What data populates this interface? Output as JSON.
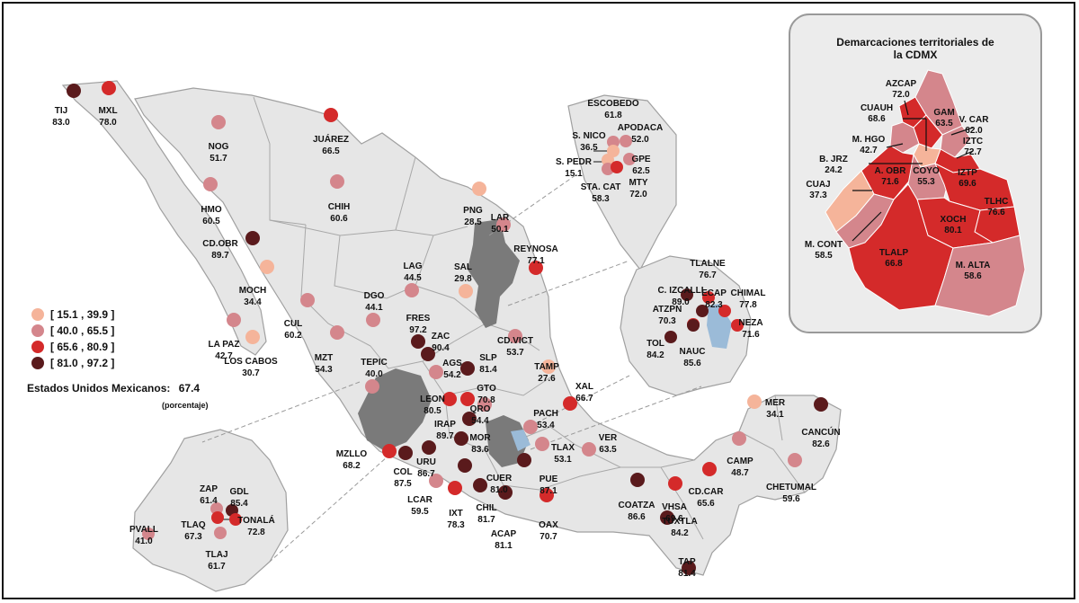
{
  "colors": {
    "class1": "#f5b49a",
    "class2": "#d4868c",
    "class3": "#d42a2a",
    "class4": "#5a1a1c",
    "land": "#e6e6e6",
    "border": "#a0a0a0",
    "highlight": "#7a7a7a",
    "water_blue": "#9bbbd8"
  },
  "legend": {
    "items": [
      {
        "label": "[ 15.1 , 39.9 ]",
        "cls": "class1"
      },
      {
        "label": "[ 40.0 , 65.5 ]",
        "cls": "class2"
      },
      {
        "label": "[ 65.6 , 80.9 ]",
        "cls": "class3"
      },
      {
        "label": "[ 81.0 , 97.2 ]",
        "cls": "class4"
      }
    ],
    "national_label": "Estados Unidos Mexicanos:",
    "national_value": "67.4",
    "unit_note": "(porcentaje)"
  },
  "inset_cdmx": {
    "title_line1": "Demarcaciones territoriales de",
    "title_line2": "la CDMX",
    "districts": [
      {
        "name": "AZCAP",
        "value": "72.0",
        "cls": "class3"
      },
      {
        "name": "GAM",
        "value": "63.5",
        "cls": "class2"
      },
      {
        "name": "CUAUH",
        "value": "68.6",
        "cls": "class3"
      },
      {
        "name": "V. CAR",
        "value": "62.0",
        "cls": "class2"
      },
      {
        "name": "M. HGO",
        "value": "42.7",
        "cls": "class2"
      },
      {
        "name": "IZTC",
        "value": "72.7",
        "cls": "class3"
      },
      {
        "name": "B. JRZ",
        "value": "24.2",
        "cls": "class1"
      },
      {
        "name": "A. OBR",
        "value": "71.6",
        "cls": "class3"
      },
      {
        "name": "COYO",
        "value": "55.3",
        "cls": "class2"
      },
      {
        "name": "IZTP",
        "value": "69.6",
        "cls": "class3"
      },
      {
        "name": "CUAJ",
        "value": "37.3",
        "cls": "class1"
      },
      {
        "name": "TLHC",
        "value": "76.6",
        "cls": "class3"
      },
      {
        "name": "XOCH",
        "value": "80.1",
        "cls": "class3"
      },
      {
        "name": "M. CONT",
        "value": "58.5",
        "cls": "class2"
      },
      {
        "name": "TLALP",
        "value": "66.8",
        "cls": "class3"
      },
      {
        "name": "M. ALTA",
        "value": "58.6",
        "cls": "class2"
      }
    ]
  },
  "cities": [
    {
      "name": "TIJ",
      "value": "83.0",
      "cls": "class4"
    },
    {
      "name": "MXL",
      "value": "78.0",
      "cls": "class3"
    },
    {
      "name": "NOG",
      "value": "51.7",
      "cls": "class2"
    },
    {
      "name": "JUÁREZ",
      "value": "66.5",
      "cls": "class3"
    },
    {
      "name": "HMO",
      "value": "60.5",
      "cls": "class2"
    },
    {
      "name": "CHIH",
      "value": "60.6",
      "cls": "class2"
    },
    {
      "name": "CD.OBR",
      "value": "89.7",
      "cls": "class4"
    },
    {
      "name": "MOCH",
      "value": "34.4",
      "cls": "class1"
    },
    {
      "name": "CUL",
      "value": "60.2",
      "cls": "class2"
    },
    {
      "name": "LA PAZ",
      "value": "42.7",
      "cls": "class2"
    },
    {
      "name": "LOS CABOS",
      "value": "30.7",
      "cls": "class1"
    },
    {
      "name": "MZT",
      "value": "54.3",
      "cls": "class2"
    },
    {
      "name": "DGO",
      "value": "44.1",
      "cls": "class2"
    },
    {
      "name": "LAG",
      "value": "44.5",
      "cls": "class2"
    },
    {
      "name": "PNG",
      "value": "28.5",
      "cls": "class1"
    },
    {
      "name": "LAR",
      "value": "50.1",
      "cls": "class2"
    },
    {
      "name": "SAL",
      "value": "29.8",
      "cls": "class1"
    },
    {
      "name": "REYNOSA",
      "value": "77.1",
      "cls": "class3"
    },
    {
      "name": "FRES",
      "value": "97.2",
      "cls": "class4"
    },
    {
      "name": "ZAC",
      "value": "90.4",
      "cls": "class4"
    },
    {
      "name": "TEPIC",
      "value": "40.0",
      "cls": "class2"
    },
    {
      "name": "AGS",
      "value": "54.2",
      "cls": "class2"
    },
    {
      "name": "SLP",
      "value": "81.4",
      "cls": "class4"
    },
    {
      "name": "CD.VICT",
      "value": "53.7",
      "cls": "class2"
    },
    {
      "name": "TAMP",
      "value": "27.6",
      "cls": "class1"
    },
    {
      "name": "LEON",
      "value": "80.5",
      "cls": "class3"
    },
    {
      "name": "GTO",
      "value": "70.8",
      "cls": "class3"
    },
    {
      "name": "IRAP",
      "value": "89.7",
      "cls": "class4"
    },
    {
      "name": "QRO",
      "value": "54.4",
      "cls": "class2"
    },
    {
      "name": "PACH",
      "value": "53.4",
      "cls": "class2"
    },
    {
      "name": "XAL",
      "value": "66.7",
      "cls": "class3"
    },
    {
      "name": "MOR",
      "value": "83.6",
      "cls": "class4"
    },
    {
      "name": "TLAX",
      "value": "53.1",
      "cls": "class2"
    },
    {
      "name": "VER",
      "value": "63.5",
      "cls": "class2"
    },
    {
      "name": "MZLLO",
      "value": "68.2",
      "cls": "class3"
    },
    {
      "name": "COL",
      "value": "87.5",
      "cls": "class4"
    },
    {
      "name": "URU",
      "value": "86.7",
      "cls": "class4"
    },
    {
      "name": "CUER",
      "value": "81.0",
      "cls": "class4"
    },
    {
      "name": "PUE",
      "value": "87.1",
      "cls": "class4"
    },
    {
      "name": "LCAR",
      "value": "59.5",
      "cls": "class2"
    },
    {
      "name": "IXT",
      "value": "78.3",
      "cls": "class3"
    },
    {
      "name": "CHIL",
      "value": "81.7",
      "cls": "class4"
    },
    {
      "name": "ACAP",
      "value": "81.1",
      "cls": "class4"
    },
    {
      "name": "OAX",
      "value": "70.7",
      "cls": "class3"
    },
    {
      "name": "COATZA",
      "value": "86.6",
      "cls": "class4"
    },
    {
      "name": "VHSA",
      "value": "69.6",
      "cls": "class3"
    },
    {
      "name": "CD.CAR",
      "value": "65.6",
      "cls": "class3"
    },
    {
      "name": "TUXTLA",
      "value": "84.2",
      "cls": "class4"
    },
    {
      "name": "TAP",
      "value": "81.4",
      "cls": "class4"
    },
    {
      "name": "CAMP",
      "value": "48.7",
      "cls": "class2"
    },
    {
      "name": "MER",
      "value": "34.1",
      "cls": "class1"
    },
    {
      "name": "CANCÚN",
      "value": "82.6",
      "cls": "class4"
    },
    {
      "name": "CHETUMAL",
      "value": "59.6",
      "cls": "class2"
    }
  ],
  "inset_monterrey": [
    {
      "name": "ESCOBEDO",
      "value": "61.8",
      "cls": "class2"
    },
    {
      "name": "S. NICO",
      "value": "36.5",
      "cls": "class1"
    },
    {
      "name": "APODACA",
      "value": "52.0",
      "cls": "class2"
    },
    {
      "name": "S. PEDR",
      "value": "15.1",
      "cls": "class1"
    },
    {
      "name": "GPE",
      "value": "62.5",
      "cls": "class2"
    },
    {
      "name": "STA. CAT",
      "value": "58.3",
      "cls": "class2"
    },
    {
      "name": "MTY",
      "value": "72.0",
      "cls": "class3"
    }
  ],
  "inset_valle_mexico": [
    {
      "name": "TLALNE",
      "value": "76.7",
      "cls": "class3"
    },
    {
      "name": "C. IZCALLI",
      "value": "89.0",
      "cls": "class4"
    },
    {
      "name": "ECAP",
      "value": "82.3",
      "cls": "class4"
    },
    {
      "name": "CHIMAL",
      "value": "77.8",
      "cls": "class3"
    },
    {
      "name": "ATZPN",
      "value": "70.3",
      "cls": "class3"
    },
    {
      "name": "NEZA",
      "value": "71.6",
      "cls": "class3"
    },
    {
      "name": "TOL",
      "value": "84.2",
      "cls": "class4"
    },
    {
      "name": "NAUC",
      "value": "85.6",
      "cls": "class4"
    }
  ],
  "inset_guadalajara": [
    {
      "name": "ZAP",
      "value": "61.4",
      "cls": "class2"
    },
    {
      "name": "GDL",
      "value": "85.4",
      "cls": "class4"
    },
    {
      "name": "TONALÁ",
      "value": "72.8",
      "cls": "class3"
    },
    {
      "name": "PVALL",
      "value": "41.0",
      "cls": "class2"
    },
    {
      "name": "TLAQ",
      "value": "67.3",
      "cls": "class3"
    },
    {
      "name": "TLAJ",
      "value": "61.7",
      "cls": "class2"
    }
  ]
}
